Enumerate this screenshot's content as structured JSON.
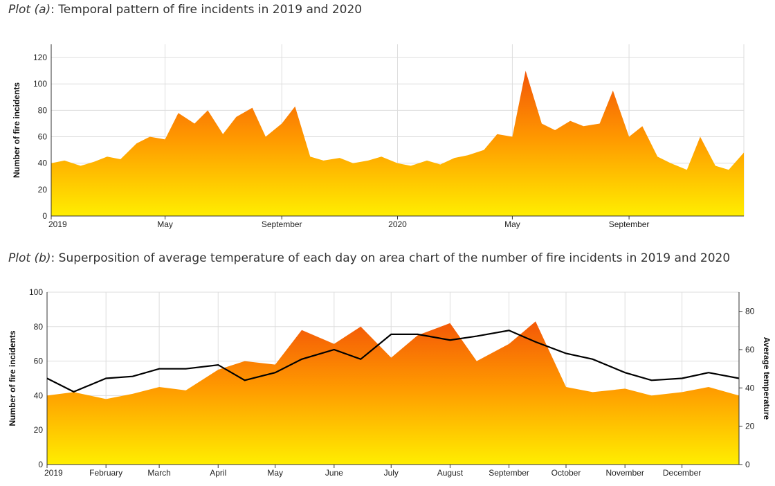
{
  "plot_a": {
    "caption_name": "Plot (a)",
    "caption_text": ": Temporal pattern of fire incidents in 2019 and 2020"
  },
  "plot_b": {
    "caption_name": "Plot (b)",
    "caption_text": ": Superposition of average temperature of each day on area chart of the number of fire incidents in 2019 and 2020"
  },
  "colors": {
    "fill_top": "#ee3a0a",
    "fill_mid": "#ff9900",
    "fill_bottom": "#ffee00",
    "line": "#000000",
    "grid": "#dddddd"
  },
  "chart_data": [
    {
      "type": "area",
      "title": "Plot (a): Temporal pattern of fire incidents in 2019 and 2020",
      "ylabel": "Number of fire incidents",
      "xlabel": "",
      "xlim": [
        "2019-01-01",
        "2020-12-31"
      ],
      "ylim": [
        0,
        130
      ],
      "yticks": [
        0,
        20,
        40,
        60,
        80,
        100,
        120
      ],
      "xticks": [
        "2019",
        "May",
        "September",
        "2020",
        "May",
        "September"
      ],
      "xtick_dates": [
        "2019-01-01",
        "2019-05-01",
        "2019-09-01",
        "2020-01-01",
        "2020-05-01",
        "2020-09-01"
      ],
      "grid": true,
      "series": [
        {
          "x": [
            "2019-01-01",
            "2019-01-15",
            "2019-02-01",
            "2019-02-15",
            "2019-03-01",
            "2019-03-15",
            "2019-04-01",
            "2019-04-15",
            "2019-05-01",
            "2019-05-15",
            "2019-06-01",
            "2019-06-15",
            "2019-07-01",
            "2019-07-15",
            "2019-08-01",
            "2019-08-15",
            "2019-09-01",
            "2019-09-15",
            "2019-10-01",
            "2019-10-15",
            "2019-11-01",
            "2019-11-15",
            "2019-12-01",
            "2019-12-15",
            "2020-01-01",
            "2020-01-15",
            "2020-02-01",
            "2020-02-15",
            "2020-03-01",
            "2020-03-15",
            "2020-04-01",
            "2020-04-15",
            "2020-05-01",
            "2020-05-15",
            "2020-06-01",
            "2020-06-15",
            "2020-07-01",
            "2020-07-15",
            "2020-08-01",
            "2020-08-15",
            "2020-09-01",
            "2020-09-15",
            "2020-10-01",
            "2020-10-15",
            "2020-11-01",
            "2020-11-15",
            "2020-12-01",
            "2020-12-15",
            "2020-12-31"
          ],
          "y": [
            40,
            42,
            38,
            41,
            45,
            43,
            55,
            60,
            58,
            78,
            70,
            80,
            62,
            75,
            82,
            60,
            70,
            83,
            45,
            42,
            44,
            40,
            42,
            45,
            40,
            38,
            42,
            39,
            44,
            46,
            50,
            62,
            60,
            110,
            70,
            65,
            72,
            68,
            70,
            95,
            60,
            68,
            45,
            40,
            35,
            60,
            38,
            35,
            48
          ]
        }
      ]
    },
    {
      "type": "area",
      "title": "Plot (b): Superposition of average temperature of each day on area chart of the number of fire incidents in 2019 and 2020",
      "ylabel": "Number of fire incidents",
      "ylabel_right": "Average temperature",
      "xlabel": "",
      "xlim": [
        "2019-01-01",
        "2019-12-31"
      ],
      "ylim": [
        0,
        100
      ],
      "yticks": [
        0,
        20,
        40,
        60,
        80,
        100
      ],
      "ylim_right": [
        0,
        90
      ],
      "yticks_right": [
        0,
        20,
        40,
        60,
        80
      ],
      "xticks": [
        "2019",
        "February",
        "March",
        "April",
        "May",
        "June",
        "July",
        "August",
        "September",
        "October",
        "November",
        "December"
      ],
      "xtick_dates": [
        "2019-01-01",
        "2019-02-01",
        "2019-03-01",
        "2019-04-01",
        "2019-05-01",
        "2019-06-01",
        "2019-07-01",
        "2019-08-01",
        "2019-09-01",
        "2019-10-01",
        "2019-11-01",
        "2019-12-01"
      ],
      "grid": true,
      "series": [
        {
          "x": [
            "2019-01-01",
            "2019-01-15",
            "2019-02-01",
            "2019-02-15",
            "2019-03-01",
            "2019-03-15",
            "2019-04-01",
            "2019-04-15",
            "2019-05-01",
            "2019-05-15",
            "2019-06-01",
            "2019-06-15",
            "2019-07-01",
            "2019-07-15",
            "2019-08-01",
            "2019-08-15",
            "2019-09-01",
            "2019-09-15",
            "2019-10-01",
            "2019-10-15",
            "2019-11-01",
            "2019-11-15",
            "2019-12-01",
            "2019-12-15",
            "2019-12-31"
          ],
          "y": [
            40,
            42,
            38,
            41,
            45,
            43,
            55,
            60,
            58,
            78,
            70,
            80,
            62,
            75,
            82,
            60,
            70,
            83,
            45,
            42,
            44,
            40,
            42,
            45,
            40
          ]
        },
        {
          "axis": "right",
          "x": [
            "2019-01-01",
            "2019-01-15",
            "2019-02-01",
            "2019-02-15",
            "2019-03-01",
            "2019-03-15",
            "2019-04-01",
            "2019-04-15",
            "2019-05-01",
            "2019-05-15",
            "2019-06-01",
            "2019-06-15",
            "2019-07-01",
            "2019-07-15",
            "2019-08-01",
            "2019-08-15",
            "2019-09-01",
            "2019-09-15",
            "2019-10-01",
            "2019-10-15",
            "2019-11-01",
            "2019-11-15",
            "2019-12-01",
            "2019-12-15",
            "2019-12-31"
          ],
          "y": [
            45,
            38,
            45,
            46,
            50,
            50,
            52,
            44,
            48,
            55,
            60,
            55,
            68,
            68,
            65,
            67,
            70,
            64,
            58,
            55,
            48,
            44,
            45,
            48,
            45
          ]
        }
      ]
    }
  ]
}
